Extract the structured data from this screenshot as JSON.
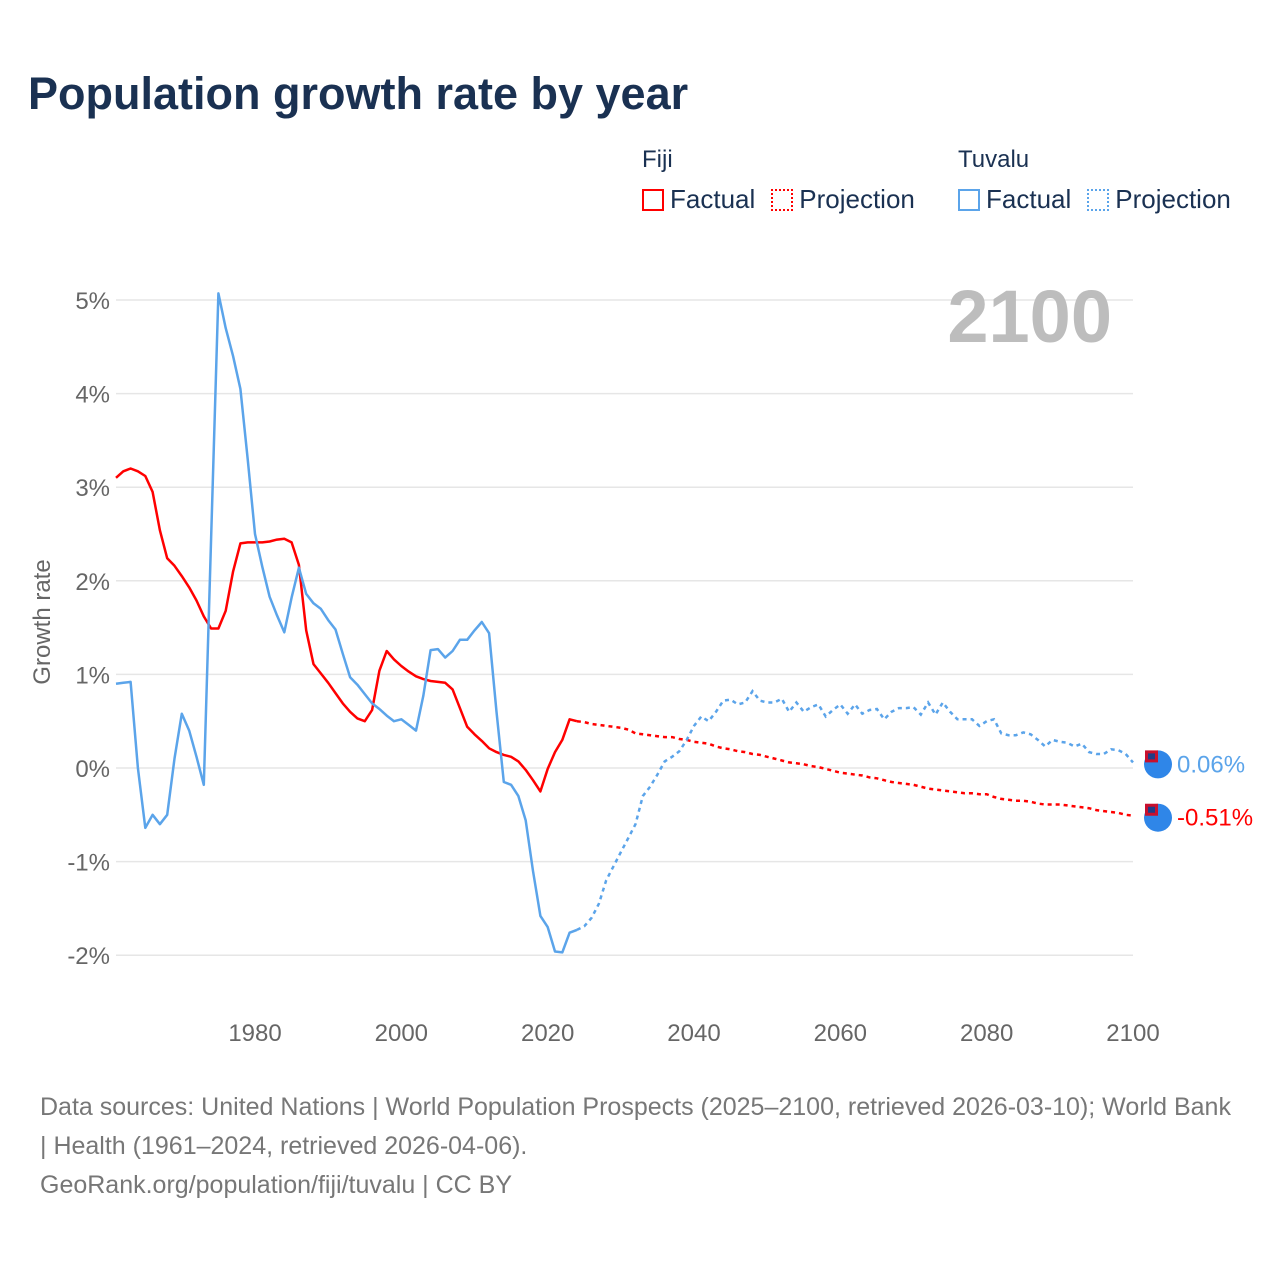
{
  "title": "Population growth rate by year",
  "legend": {
    "groups": [
      {
        "name": "Fiji",
        "color": "#ff0000",
        "factual": "Factual",
        "projection": "Projection"
      },
      {
        "name": "Tuvalu",
        "color": "#5ba4ea",
        "factual": "Factual",
        "projection": "Projection"
      }
    ]
  },
  "year_label": "2100",
  "footer": {
    "sources": "Data sources: United Nations | World Population Prospects (2025–2100, retrieved 2026-03-10); World Bank | Health (1961–2024, retrieved 2026-04-06).",
    "credit": "GeoRank.org/population/fiji/tuvalu | CC BY"
  },
  "chart_data": {
    "type": "line",
    "title": "Population growth rate by year",
    "xlabel": "",
    "ylabel": "Growth rate",
    "xlim": [
      1961,
      2100
    ],
    "ylim": [
      -2.5,
      5.3
    ],
    "xticks": [
      1980,
      2000,
      2020,
      2040,
      2060,
      2080,
      2100
    ],
    "yticks": [
      -2,
      -1,
      0,
      1,
      2,
      3,
      4,
      5
    ],
    "ytick_labels": [
      "-2%",
      "-1%",
      "0%",
      "1%",
      "2%",
      "3%",
      "4%",
      "5%"
    ],
    "grid": true,
    "legend_position": "top-right",
    "series": [
      {
        "name": "Fiji",
        "color": "#ff0000",
        "end_label": "-0.51%",
        "factual_start": 1961,
        "factual": [
          3.1,
          3.17,
          3.2,
          3.17,
          3.12,
          2.95,
          2.54,
          2.24,
          2.16,
          2.05,
          1.93,
          1.79,
          1.62,
          1.49,
          1.49,
          1.68,
          2.1,
          2.4,
          2.41,
          2.41,
          2.41,
          2.42,
          2.44,
          2.45,
          2.41,
          2.17,
          1.47,
          1.11,
          1.01,
          0.91,
          0.8,
          0.69,
          0.6,
          0.53,
          0.5,
          0.62,
          1.04,
          1.25,
          1.16,
          1.09,
          1.03,
          0.98,
          0.95,
          0.93,
          0.92,
          0.91,
          0.84,
          0.64,
          0.44,
          0.36,
          0.29,
          0.21,
          0.17,
          0.14,
          0.12,
          0.07,
          -0.02,
          -0.13,
          -0.25,
          -0.01,
          0.17,
          0.3,
          0.52,
          0.5
        ],
        "projection_start": 2024,
        "projection": [
          0.5,
          0.49,
          0.47,
          0.46,
          0.45,
          0.44,
          0.43,
          0.41,
          0.37,
          0.36,
          0.35,
          0.34,
          0.33,
          0.33,
          0.31,
          0.3,
          0.28,
          0.27,
          0.26,
          0.23,
          0.21,
          0.2,
          0.18,
          0.17,
          0.15,
          0.14,
          0.12,
          0.1,
          0.08,
          0.06,
          0.05,
          0.04,
          0.02,
          0.01,
          -0.01,
          -0.03,
          -0.05,
          -0.06,
          -0.07,
          -0.08,
          -0.1,
          -0.11,
          -0.13,
          -0.15,
          -0.16,
          -0.17,
          -0.18,
          -0.2,
          -0.22,
          -0.23,
          -0.24,
          -0.25,
          -0.26,
          -0.27,
          -0.27,
          -0.28,
          -0.28,
          -0.31,
          -0.33,
          -0.34,
          -0.35,
          -0.35,
          -0.36,
          -0.38,
          -0.39,
          -0.39,
          -0.39,
          -0.4,
          -0.41,
          -0.42,
          -0.43,
          -0.45,
          -0.46,
          -0.47,
          -0.48,
          -0.5,
          -0.51
        ]
      },
      {
        "name": "Tuvalu",
        "color": "#5ba4ea",
        "end_label": "0.06%",
        "factual_start": 1961,
        "factual": [
          0.9,
          0.91,
          0.92,
          0.0,
          -0.64,
          -0.5,
          -0.6,
          -0.5,
          0.1,
          0.58,
          0.4,
          0.12,
          -0.18,
          2.45,
          5.07,
          4.7,
          4.4,
          4.05,
          3.3,
          2.5,
          2.15,
          1.83,
          1.63,
          1.45,
          1.82,
          2.14,
          1.86,
          1.76,
          1.7,
          1.58,
          1.48,
          1.22,
          0.97,
          0.89,
          0.79,
          0.69,
          0.63,
          0.56,
          0.5,
          0.52,
          0.46,
          0.4,
          0.77,
          1.26,
          1.27,
          1.18,
          1.25,
          1.37,
          1.37,
          1.47,
          1.56,
          1.44,
          0.6,
          -0.15,
          -0.18,
          -0.3,
          -0.56,
          -1.1,
          -1.58,
          -1.7,
          -1.96,
          -1.97,
          -1.76,
          -1.73
        ],
        "projection_start": 2024,
        "projection": [
          -1.73,
          -1.69,
          -1.6,
          -1.45,
          -1.2,
          -1.05,
          -0.9,
          -0.75,
          -0.6,
          -0.3,
          -0.2,
          -0.07,
          0.07,
          0.12,
          0.18,
          0.3,
          0.45,
          0.55,
          0.5,
          0.6,
          0.72,
          0.73,
          0.68,
          0.7,
          0.82,
          0.72,
          0.7,
          0.7,
          0.74,
          0.6,
          0.7,
          0.6,
          0.65,
          0.68,
          0.55,
          0.62,
          0.68,
          0.58,
          0.68,
          0.58,
          0.62,
          0.63,
          0.52,
          0.6,
          0.64,
          0.64,
          0.65,
          0.57,
          0.7,
          0.57,
          0.7,
          0.6,
          0.52,
          0.52,
          0.52,
          0.45,
          0.5,
          0.52,
          0.37,
          0.35,
          0.35,
          0.38,
          0.36,
          0.3,
          0.23,
          0.3,
          0.28,
          0.27,
          0.23,
          0.26,
          0.17,
          0.15,
          0.15,
          0.2,
          0.19,
          0.15,
          0.06
        ]
      }
    ]
  }
}
